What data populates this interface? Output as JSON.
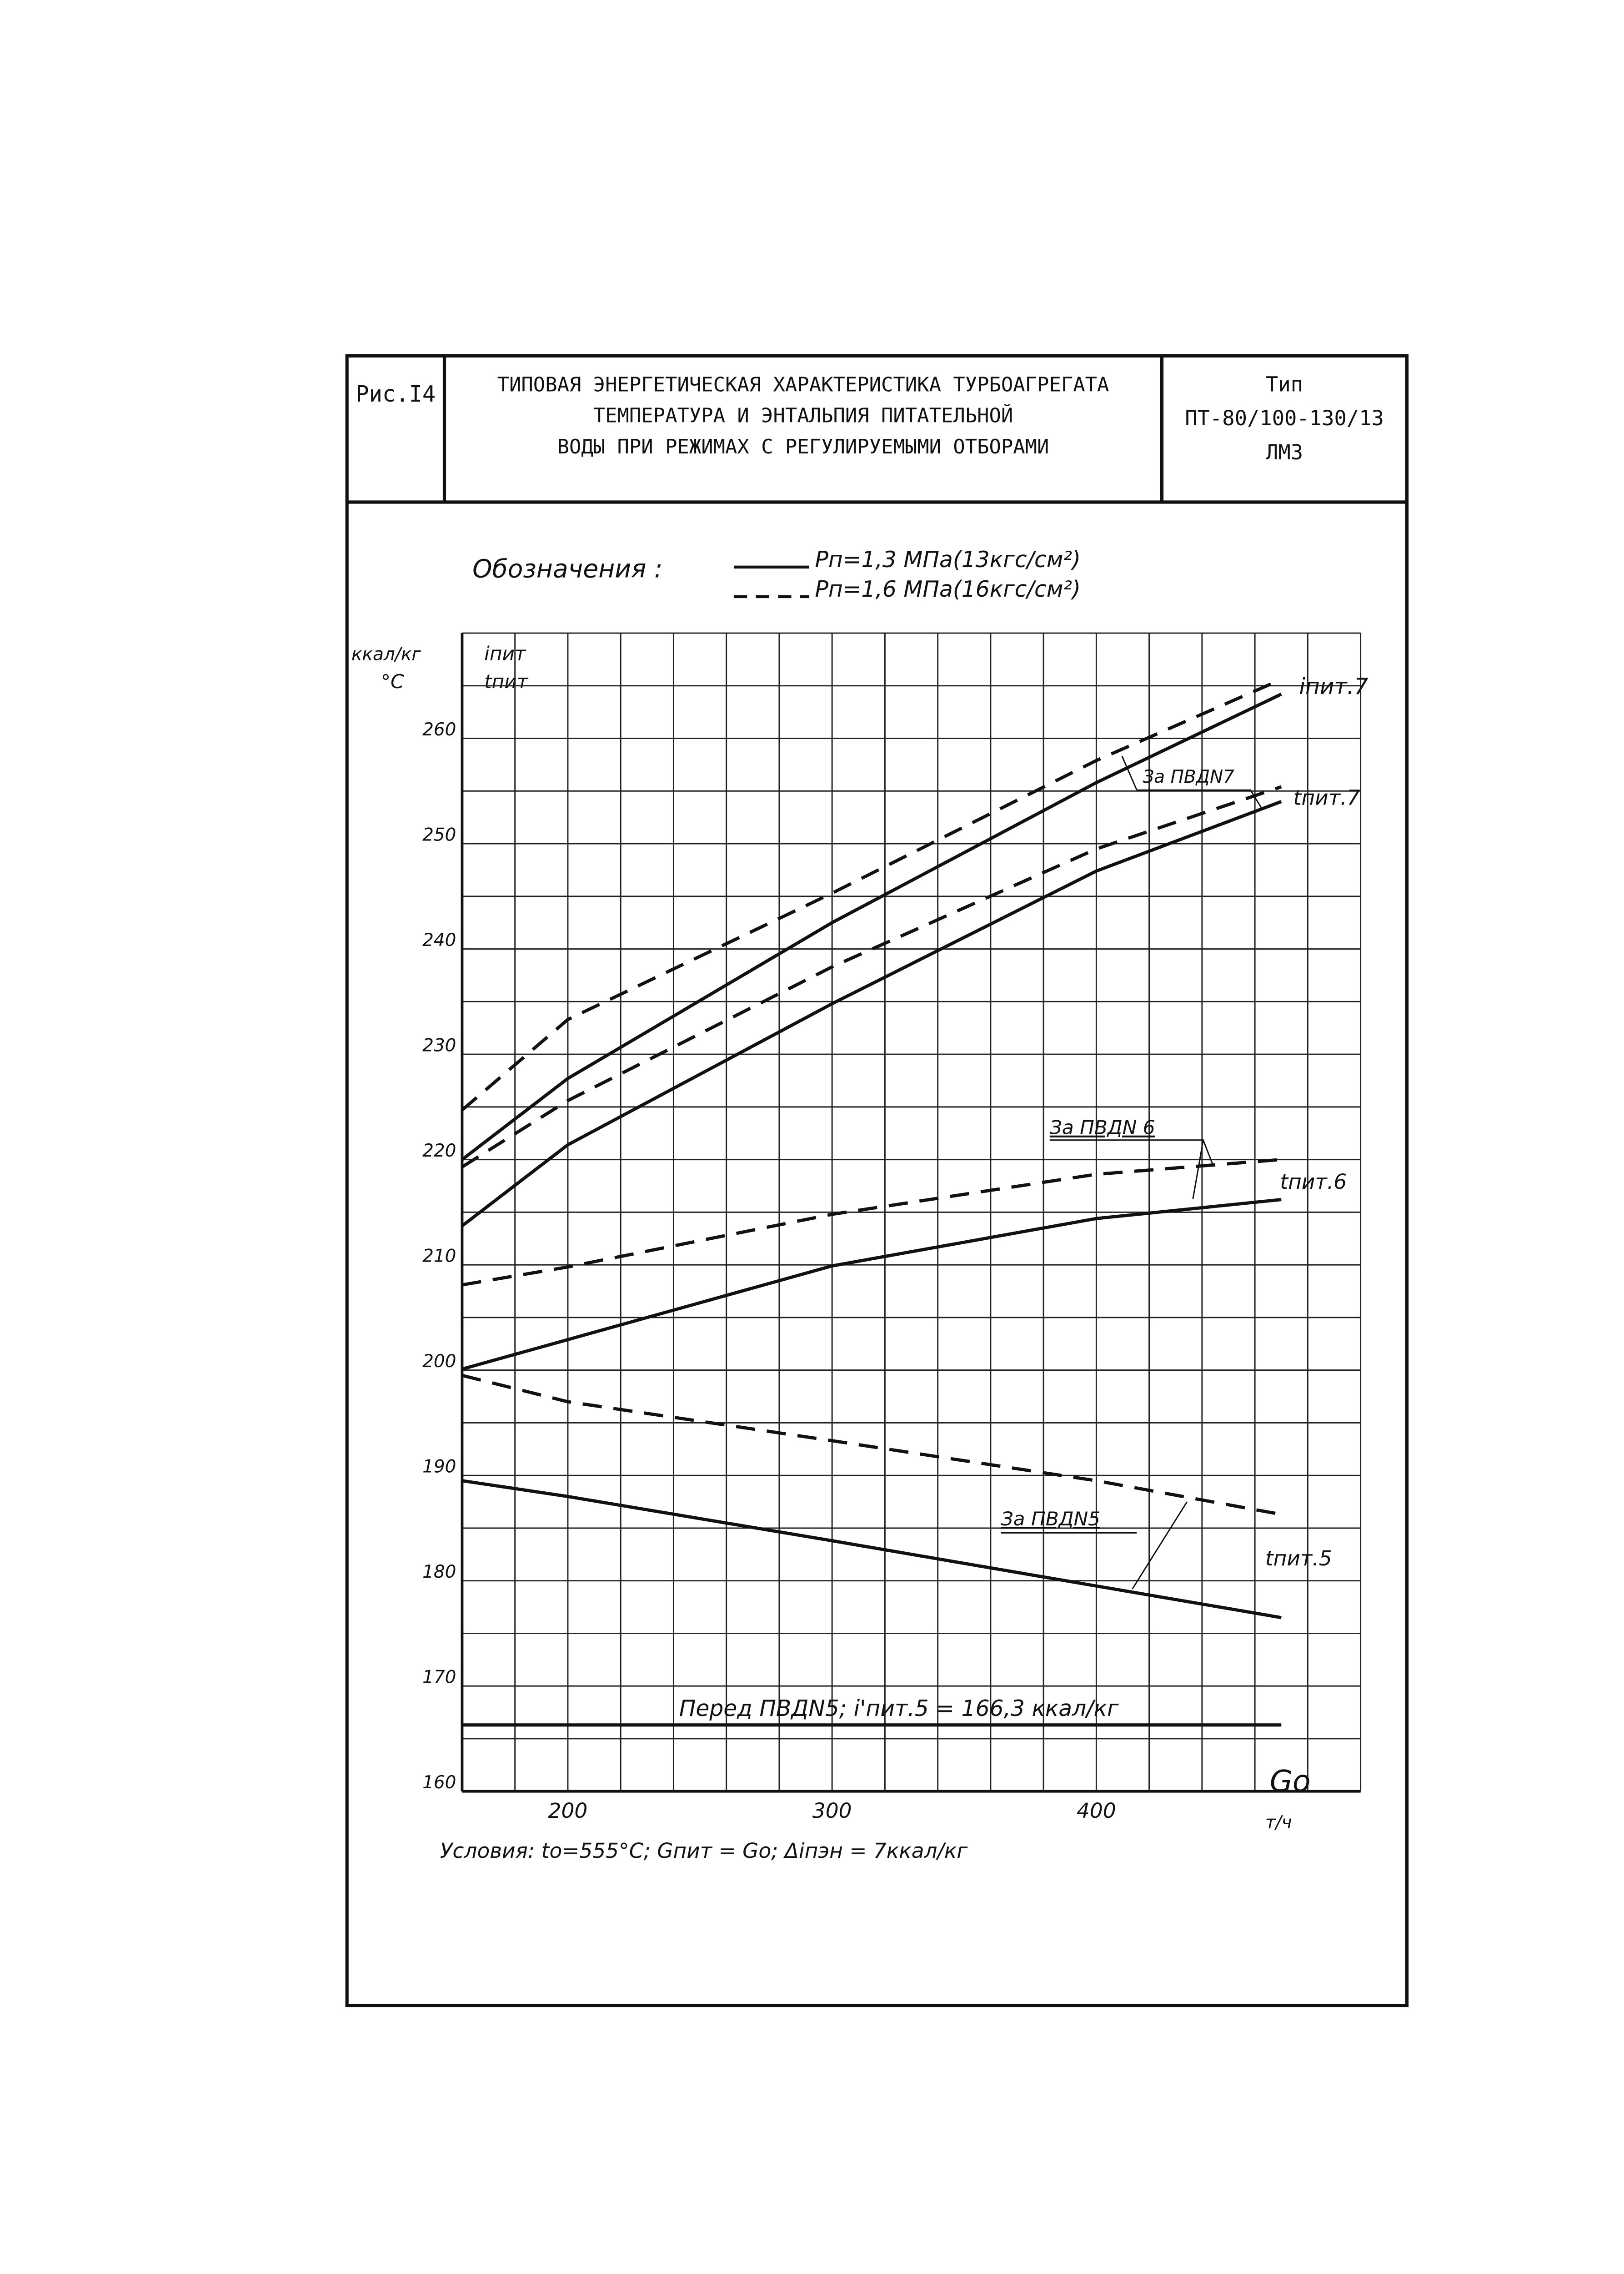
{
  "header": {
    "fig_label": "Рис.I4",
    "title_lines": [
      "ТИПОВАЯ ЭНЕРГЕТИЧЕСКАЯ ХАРАКТЕРИСТИКА ТУРБОАГРЕГАТА",
      "ТЕМПЕРАТУРА И ЭНТАЛЬПИЯ ПИТАТЕЛЬНОЙ",
      "ВОДЫ ПРИ РЕЖИМАХ С РЕГУЛИРУЕМЫМИ ОТБОРАМИ"
    ],
    "type_lines": [
      "Тип",
      "ПТ-80/100-130/13",
      "ЛМЗ"
    ]
  },
  "chart_data": {
    "type": "line",
    "legend_title": "Обозначения :",
    "legend": [
      {
        "style": "solid",
        "label": "Pп=1,3 МПа(13кгс/см²)"
      },
      {
        "style": "dashed",
        "label": "Pп=1,6 МПа(16кгс/см²)"
      }
    ],
    "ylabel_units": [
      "ккал/кг",
      "°C"
    ],
    "ylabel_vars": [
      "iпит",
      "tпит"
    ],
    "xlabel": "Go",
    "xunits": "т/ч",
    "xlim": [
      160,
      500
    ],
    "ylim": [
      160,
      270
    ],
    "xticks": [
      200,
      300,
      400
    ],
    "yticks": [
      160,
      170,
      180,
      190,
      200,
      210,
      220,
      230,
      240,
      250,
      260
    ],
    "grid": true,
    "x": [
      160,
      200,
      300,
      400,
      470
    ],
    "series": [
      {
        "name": "iпит.7 Pп=1,3",
        "style": "solid",
        "values": [
          220,
          227.7,
          242.5,
          255.8,
          264.2
        ]
      },
      {
        "name": "iпит.7 Pп=1,6",
        "style": "dashed",
        "values": [
          224.7,
          233.3,
          245.3,
          257.9,
          265.6
        ]
      },
      {
        "name": "tпит.7 Pп=1,6",
        "style": "dashed",
        "values": [
          219.3,
          225.6,
          238.3,
          249.5,
          255.4
        ]
      },
      {
        "name": "tпит.7 Pп=1,3",
        "style": "solid",
        "values": [
          213.7,
          221.4,
          234.8,
          247.4,
          254.0
        ]
      },
      {
        "name": "tпит.6 Pп=1,6",
        "style": "dashed",
        "values": [
          208.1,
          209.8,
          214.8,
          218.6,
          220.0
        ]
      },
      {
        "name": "tпит.6 Pп=1,3",
        "style": "solid",
        "values": [
          200.1,
          202.9,
          209.9,
          214.4,
          216.2
        ]
      },
      {
        "name": "tпит.5 Pп=1,6",
        "style": "dashed",
        "values": [
          199.5,
          197.0,
          193.3,
          189.5,
          186.3
        ]
      },
      {
        "name": "tпит.5 Pп=1,3",
        "style": "solid",
        "values": [
          189.5,
          188.0,
          183.8,
          179.5,
          176.5
        ]
      },
      {
        "name": "i'пит.5 перед ПВД5",
        "style": "solid",
        "values": [
          166.3,
          166.3,
          166.3,
          166.3,
          166.3
        ]
      }
    ],
    "annotations": {
      "i7": "iпит.7",
      "t7": "tпит.7",
      "t6": "tпит.6",
      "t5": "tпит.5",
      "pvd7": "За ПВДN7",
      "pvd6": "За ПВДN 6",
      "pvd5": "За ПВДN5",
      "before": "Перед ПВДN5; i'пит.5 = 166,3 ккал/кг",
      "conditions": "Условия: to=555°C; Gпит = Go; Δiпэн = 7ккал/кг"
    }
  }
}
